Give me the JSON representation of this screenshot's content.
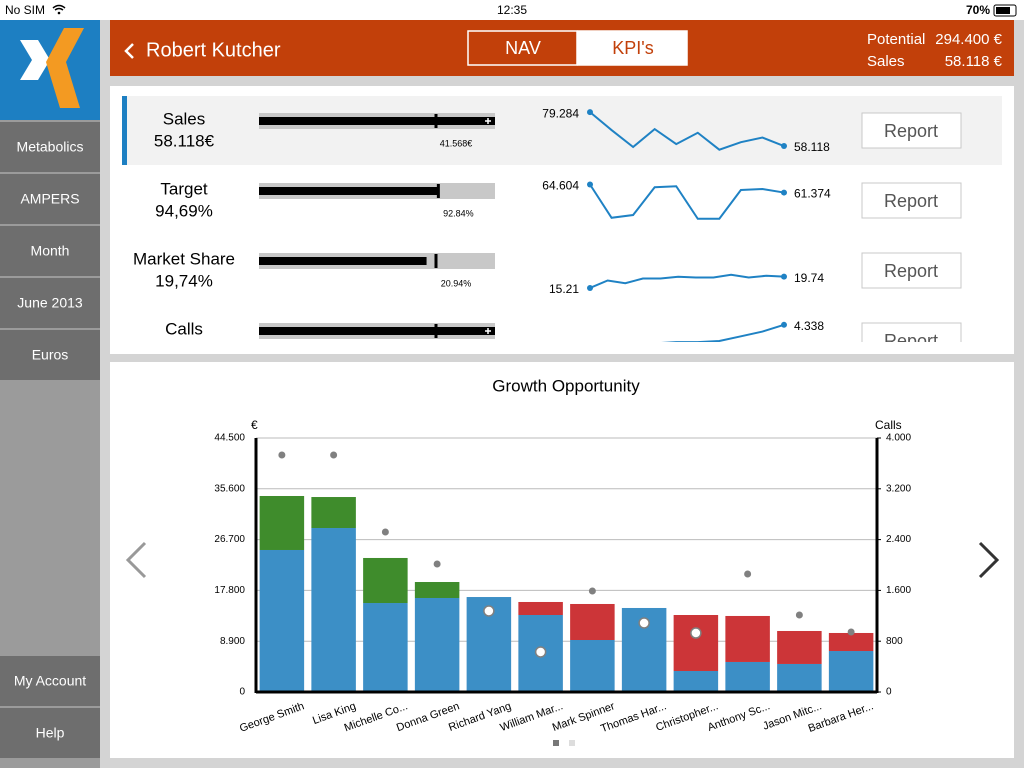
{
  "status_bar": {
    "carrier": "No SIM",
    "time": "12:35",
    "battery": "70%"
  },
  "sidebar": {
    "menu": [
      "Metabolics",
      "AMPERS",
      "Month",
      "June 2013",
      "Euros"
    ],
    "footer": [
      "My Account",
      "Help"
    ]
  },
  "header": {
    "title": "Robert Kutcher",
    "tabs": [
      "NAV",
      "KPI's"
    ],
    "active_tab": 1,
    "summary": [
      {
        "label": "Potential",
        "value": "294.400 €"
      },
      {
        "label": "Sales",
        "value": "58.118 €"
      }
    ]
  },
  "kpis": [
    {
      "name": "Sales",
      "value": "58.118€",
      "bullet": {
        "fill": 100,
        "marker": 75,
        "overflow": true,
        "marker_label": "41.568€"
      },
      "sparkline": {
        "values": [
          79.284,
          68.1,
          57.5,
          68.7,
          59.3,
          66.4,
          55.8,
          60.5,
          63.4,
          58.118
        ],
        "ylim": [
          55,
          80
        ],
        "start_label": "79.284",
        "end_label": "58.118"
      },
      "button": "Report"
    },
    {
      "name": "Target",
      "value": "94,69%",
      "bullet": {
        "fill": 76,
        "marker": 76,
        "overflow": false,
        "marker_label": "92.84%"
      },
      "sparkline": {
        "values": [
          64.604,
          51.3,
          52.4,
          63.5,
          63.9,
          50.9,
          50.9,
          62.4,
          62.8,
          61.374
        ],
        "ylim": [
          50,
          66
        ],
        "start_label": "64.604",
        "end_label": "61.374"
      },
      "button": "Report"
    },
    {
      "name": "Market Share",
      "value": "19,74%",
      "bullet": {
        "fill": 71,
        "marker": 75,
        "overflow": false,
        "marker_label": "20.94%"
      },
      "sparkline": {
        "values": [
          15.21,
          18.2,
          17.1,
          19.0,
          19.0,
          19.7,
          19.4,
          19.4,
          20.5,
          19.4,
          20.1,
          19.74
        ],
        "ylim": [
          14,
          30
        ],
        "start_label": "15.21",
        "end_label": "19.74"
      },
      "button": "Report"
    },
    {
      "name": "Calls",
      "bullet": {
        "fill": 100,
        "marker": 75,
        "overflow": true
      },
      "sparkline": {
        "values": [
          3.0,
          3.1,
          3.2,
          3.55,
          3.6,
          3.6,
          3.65,
          3.85,
          4.05,
          4.338
        ],
        "ylim": [
          2.8,
          4.5
        ],
        "end_label": "4.338"
      },
      "button": "Report"
    }
  ],
  "chart_data": {
    "type": "bar",
    "title": "Growth Opportunity",
    "ylabel": "€",
    "y2label": "Calls",
    "categories": [
      "George Smith",
      "Lisa King",
      "Michelle Co...",
      "Donna Green",
      "Richard Yang",
      "William Mar...",
      "Mark Spinner",
      "Thomas Har...",
      "Christopher...",
      "Anthony Sc...",
      "Jason Mitc...",
      "Barbara Her..."
    ],
    "ylim": [
      0,
      44500
    ],
    "yticks": [
      0,
      {
        "value": 8900,
        "label": "8.900"
      },
      {
        "value": 17800,
        "label": "17.800"
      },
      {
        "value": 26700,
        "label": "26.700"
      },
      {
        "value": 35600,
        "label": "35.600"
      },
      {
        "value": 44500,
        "label": "44.500"
      }
    ],
    "y2lim": [
      0,
      4000
    ],
    "y2ticks": [
      0,
      800,
      {
        "value": 1600,
        "label": "1.600"
      },
      {
        "value": 2400,
        "label": "2.400"
      },
      {
        "value": 3200,
        "label": "3.200"
      },
      {
        "value": 4000,
        "label": "4.000"
      }
    ],
    "grid": true,
    "stacked": true,
    "series": [
      {
        "color": "#3c8fc6",
        "values": [
          24880,
          28730,
          15590,
          16470,
          16640,
          13490,
          9110,
          14720,
          3680,
          5260,
          4910,
          7180
        ]
      },
      {
        "color": "#3f8c2c",
        "values": [
          9460,
          5430,
          7890,
          2800,
          null,
          null,
          null,
          null,
          null,
          null,
          null,
          null
        ]
      },
      {
        "color": "#cc3538",
        "values": [
          null,
          null,
          null,
          null,
          null,
          2280,
          6310,
          null,
          9810,
          8060,
          5780,
          3160
        ]
      },
      {
        "axis": "y2",
        "color": "#808080",
        "values": [
          3732,
          3732,
          2520,
          2016,
          null,
          null,
          1591,
          null,
          null,
          1858,
          1213,
          945
        ]
      },
      {
        "axis": "y2",
        "color": "#ffffff",
        "edgecolor": "#808080",
        "values": [
          null,
          null,
          null,
          null,
          1276,
          630,
          null,
          1087,
          929,
          null,
          null,
          null
        ]
      }
    ]
  }
}
